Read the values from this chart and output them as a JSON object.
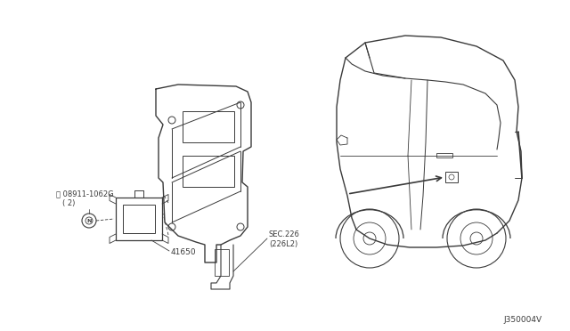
{
  "background_color": "#ffffff",
  "line_color": "#3a3a3a",
  "text_color": "#3a3a3a",
  "diagram_id": "J350004V",
  "label_41650": "41650",
  "label_bolt": "Ⓝ 08911-1062G\n  ( 2)",
  "label_sec226": "SEC.226\n(226L2)",
  "figsize": [
    6.4,
    3.72
  ],
  "dpi": 100
}
